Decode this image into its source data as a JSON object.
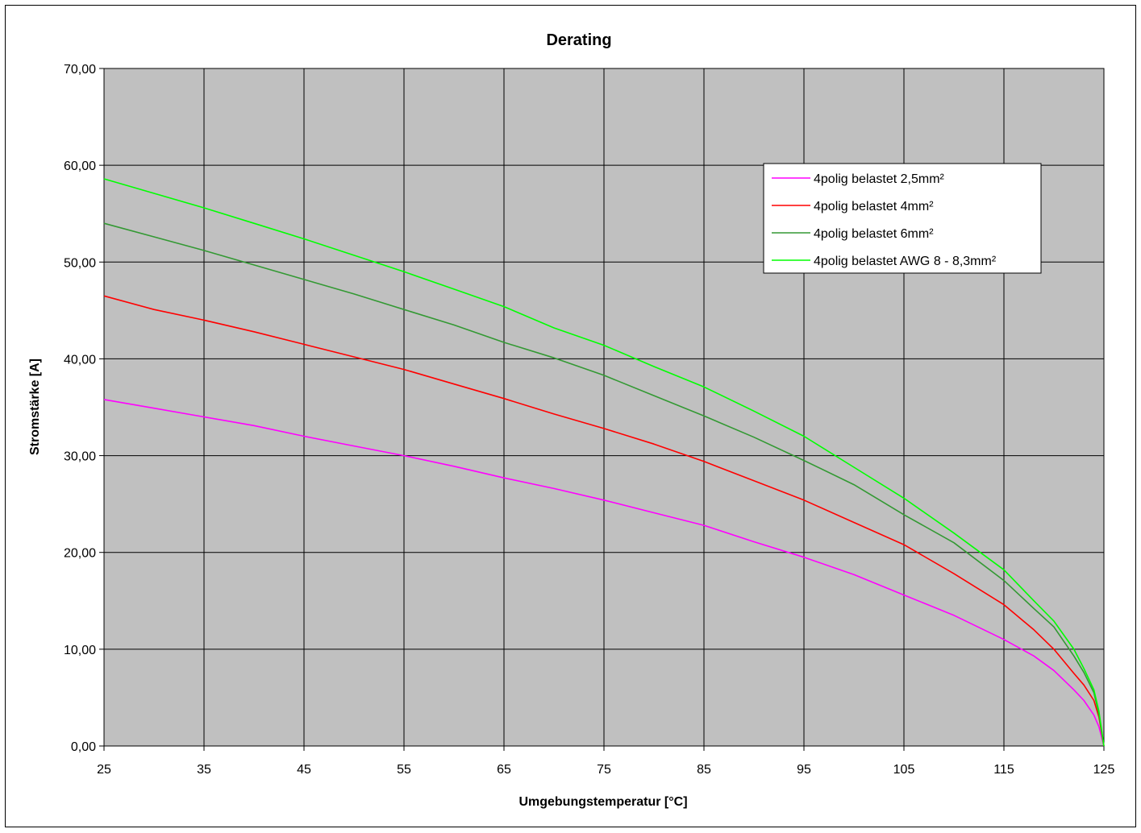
{
  "chart_data": {
    "type": "line",
    "title": "Derating",
    "xlabel": "Umgebungstemperatur [°C]",
    "ylabel": "Stromstärke [A]",
    "xlim": [
      25,
      125
    ],
    "ylim": [
      0,
      70
    ],
    "x_ticks": [
      "25",
      "35",
      "45",
      "55",
      "65",
      "75",
      "85",
      "95",
      "105",
      "115",
      "125"
    ],
    "y_ticks": [
      "0,00",
      "10,00",
      "20,00",
      "30,00",
      "40,00",
      "50,00",
      "60,00",
      "70,00"
    ],
    "grid": true,
    "plot_background": "#c0c0c0",
    "legend_position": "top-right",
    "series": [
      {
        "name": "4polig belastet 2,5mm²",
        "color": "#ff00ff",
        "x": [
          25,
          30,
          35,
          40,
          45,
          50,
          55,
          60,
          65,
          70,
          75,
          80,
          85,
          90,
          95,
          100,
          105,
          110,
          115,
          118,
          120,
          122,
          123,
          124,
          124.5,
          125
        ],
        "y": [
          35.8,
          34.9,
          34.0,
          33.1,
          32.0,
          31.0,
          30.0,
          28.9,
          27.7,
          26.6,
          25.4,
          24.1,
          22.8,
          21.1,
          19.5,
          17.7,
          15.6,
          13.5,
          11.0,
          9.3,
          7.8,
          5.8,
          4.7,
          3.2,
          2.0,
          0.0
        ]
      },
      {
        "name": "4polig belastet 4mm²",
        "color": "#ff0000",
        "x": [
          25,
          30,
          35,
          40,
          45,
          50,
          55,
          60,
          65,
          70,
          75,
          80,
          85,
          90,
          95,
          100,
          105,
          110,
          115,
          118,
          120,
          122,
          123,
          124,
          124.5,
          125
        ],
        "y": [
          46.5,
          45.1,
          44.0,
          42.8,
          41.5,
          40.2,
          38.9,
          37.4,
          35.9,
          34.3,
          32.8,
          31.2,
          29.4,
          27.4,
          25.4,
          23.1,
          20.8,
          17.8,
          14.6,
          12.0,
          10.0,
          7.5,
          6.3,
          4.7,
          3.0,
          0.0
        ]
      },
      {
        "name": "4polig belastet 6mm²",
        "color": "#339933",
        "x": [
          25,
          30,
          35,
          40,
          45,
          50,
          55,
          60,
          65,
          70,
          75,
          80,
          85,
          90,
          95,
          100,
          105,
          110,
          115,
          118,
          120,
          122,
          123,
          124,
          124.5,
          125
        ],
        "y": [
          54.0,
          52.6,
          51.2,
          49.7,
          48.2,
          46.7,
          45.1,
          43.5,
          41.7,
          40.1,
          38.3,
          36.2,
          34.1,
          31.9,
          29.5,
          27.0,
          23.9,
          21.0,
          17.1,
          14.2,
          12.3,
          9.3,
          7.6,
          5.5,
          3.3,
          0.0
        ]
      },
      {
        "name": "4polig belastet AWG 8 - 8,3mm²",
        "color": "#00ff00",
        "x": [
          25,
          30,
          35,
          40,
          45,
          50,
          55,
          60,
          65,
          70,
          75,
          80,
          85,
          90,
          95,
          100,
          105,
          110,
          115,
          118,
          120,
          122,
          123,
          124,
          124.5,
          125
        ],
        "y": [
          58.6,
          57.1,
          55.6,
          54.0,
          52.4,
          50.7,
          49.0,
          47.2,
          45.4,
          43.2,
          41.4,
          39.2,
          37.1,
          34.6,
          32.0,
          28.8,
          25.6,
          22.0,
          18.2,
          15.0,
          12.9,
          10.0,
          8.0,
          5.8,
          3.6,
          0.0
        ]
      }
    ]
  }
}
